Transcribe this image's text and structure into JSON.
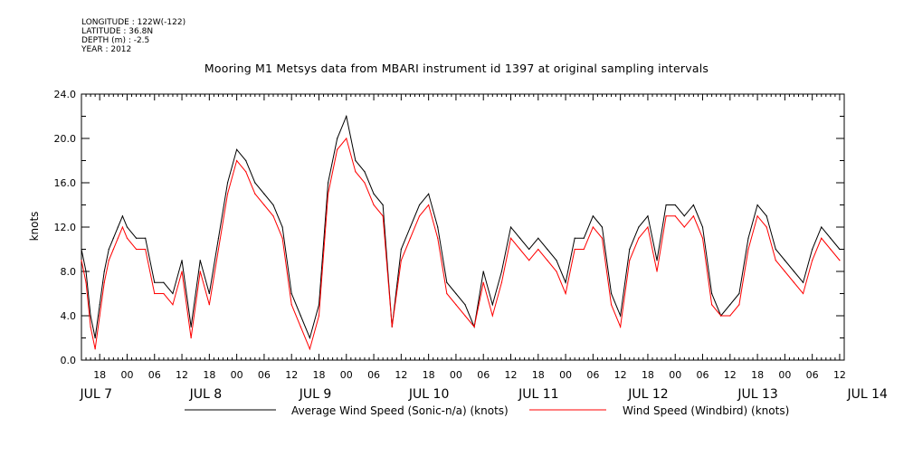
{
  "header": {
    "meta": [
      "LONGITUDE : 122W(-122)",
      "LATITUDE : 36.8N",
      "DEPTH (m) : -2.5",
      "YEAR : 2012"
    ],
    "title": "Mooring M1 Metsys data from MBARI instrument id 1397 at original sampling intervals"
  },
  "chart_data": {
    "type": "line",
    "title": "Mooring M1 Metsys data from MBARI instrument id 1397 at original sampling intervals",
    "xlabel": "",
    "ylabel": "knots",
    "ylim": [
      0,
      24
    ],
    "yticks": [
      "0.0",
      "4.0",
      "8.0",
      "12.0",
      "16.0",
      "20.0",
      "24.0"
    ],
    "xlim_hours_from_jul7_00": [
      -10,
      157
    ],
    "xtick_hour_labels": [
      "18",
      "00",
      "06",
      "12",
      "18",
      "00",
      "06",
      "12",
      "18",
      "00",
      "06",
      "12",
      "18",
      "00",
      "06",
      "12",
      "18",
      "00",
      "06",
      "12",
      "18",
      "00",
      "06",
      "12",
      "18",
      "00",
      "06",
      "12"
    ],
    "xtick_hours_from_jul7_00": [
      -6,
      0,
      6,
      12,
      18,
      24,
      30,
      36,
      42,
      48,
      54,
      60,
      66,
      72,
      78,
      84,
      90,
      96,
      102,
      108,
      114,
      120,
      126,
      132,
      138,
      144,
      150,
      156
    ],
    "date_labels": [
      "JUL  7",
      "JUL  8",
      "JUL  9",
      "JUL 10",
      "JUL 11",
      "JUL 12",
      "JUL 13",
      "JUL 14"
    ],
    "grid": false,
    "legend_position": "bottom",
    "colors": {
      "Average Wind Speed (Sonic-n/a) (knots)": "#000000",
      "Wind Speed (Windbird) (knots)": "#ff0000"
    },
    "series": [
      {
        "name": "Average Wind Speed (Sonic-n/a) (knots)",
        "x_hours_from_jul7_00": [
          -10,
          -9,
          -8,
          -7,
          -6,
          -5,
          -4,
          -3,
          -2,
          -1,
          0,
          2,
          4,
          6,
          8,
          10,
          12,
          14,
          16,
          18,
          20,
          22,
          24,
          26,
          28,
          30,
          32,
          34,
          36,
          38,
          40,
          42,
          44,
          46,
          48,
          50,
          52,
          54,
          56,
          58,
          60,
          62,
          64,
          66,
          68,
          70,
          72,
          74,
          76,
          78,
          80,
          82,
          84,
          86,
          88,
          90,
          92,
          94,
          96,
          98,
          100,
          102,
          104,
          106,
          108,
          110,
          112,
          114,
          116,
          118,
          120,
          122,
          124,
          126,
          128,
          130,
          132,
          134,
          136,
          138,
          140,
          142,
          144,
          146,
          148,
          150,
          152,
          154,
          156
        ],
        "values": [
          10,
          8,
          4,
          2,
          5,
          8,
          10,
          11,
          12,
          13,
          12,
          11,
          11,
          7,
          7,
          6,
          9,
          3,
          9,
          6,
          11,
          16,
          19,
          18,
          16,
          15,
          14,
          12,
          6,
          4,
          2,
          5,
          16,
          20,
          22,
          18,
          17,
          15,
          14,
          3,
          10,
          12,
          14,
          15,
          12,
          7,
          6,
          5,
          3,
          8,
          5,
          8,
          12,
          11,
          10,
          11,
          10,
          9,
          7,
          11,
          11,
          13,
          12,
          6,
          4,
          10,
          12,
          13,
          9,
          14,
          14,
          13,
          14,
          12,
          6,
          4,
          5,
          6,
          11,
          14,
          13,
          10,
          9,
          8,
          7,
          10,
          12,
          11,
          10
        ]
      },
      {
        "name": "Wind Speed (Windbird) (knots)",
        "x_hours_from_jul7_00": [
          -10,
          -9,
          -8,
          -7,
          -6,
          -5,
          -4,
          -3,
          -2,
          -1,
          0,
          2,
          4,
          6,
          8,
          10,
          12,
          14,
          16,
          18,
          20,
          22,
          24,
          26,
          28,
          30,
          32,
          34,
          36,
          38,
          40,
          42,
          44,
          46,
          48,
          50,
          52,
          54,
          56,
          58,
          60,
          62,
          64,
          66,
          68,
          70,
          72,
          74,
          76,
          78,
          80,
          82,
          84,
          86,
          88,
          90,
          92,
          94,
          96,
          98,
          100,
          102,
          104,
          106,
          108,
          110,
          112,
          114,
          116,
          118,
          120,
          122,
          124,
          126,
          128,
          130,
          132,
          134,
          136,
          138,
          140,
          142,
          144,
          146,
          148,
          150,
          152,
          154,
          156
        ],
        "values": [
          9,
          7,
          3,
          1,
          4,
          7,
          9,
          10,
          11,
          12,
          11,
          10,
          10,
          6,
          6,
          5,
          8,
          2,
          8,
          5,
          10,
          15,
          18,
          17,
          15,
          14,
          13,
          11,
          5,
          3,
          1,
          4,
          15,
          19,
          20,
          17,
          16,
          14,
          13,
          3,
          9,
          11,
          13,
          14,
          11,
          6,
          5,
          4,
          3,
          7,
          4,
          7,
          11,
          10,
          9,
          10,
          9,
          8,
          6,
          10,
          10,
          12,
          11,
          5,
          3,
          9,
          11,
          12,
          8,
          13,
          13,
          12,
          13,
          11,
          5,
          4,
          4,
          5,
          10,
          13,
          12,
          9,
          8,
          7,
          6,
          9,
          11,
          10,
          9
        ]
      }
    ]
  }
}
